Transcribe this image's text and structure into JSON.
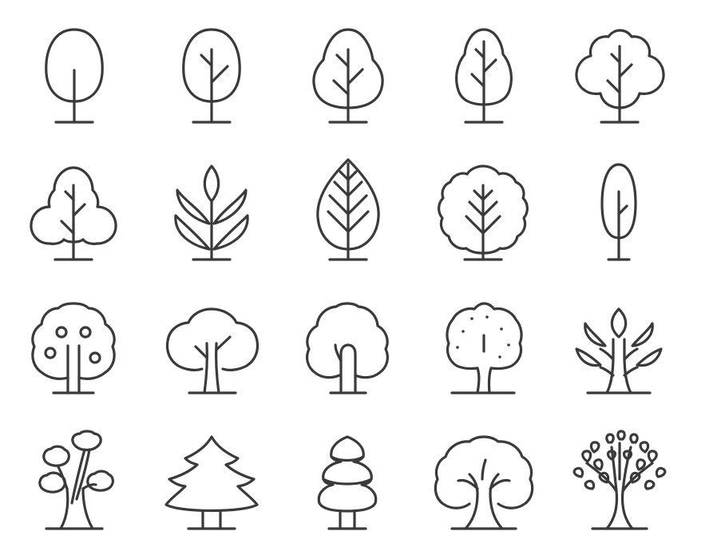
{
  "icon_sheet": {
    "stroke_color": "#3a3a3a",
    "background_color": "#ffffff",
    "rows": [
      [
        "oval-tree-icon",
        "oval-branch-tree-icon",
        "round-branch-tree-icon",
        "tall-branch-tree-icon",
        "cloud-branch-tree-icon"
      ],
      [
        "bushy-tree-icon",
        "leaf-sprig-icon",
        "leaf-tree-icon",
        "round-bush-tree-icon",
        "poplar-tree-icon"
      ],
      [
        "fruit-tree-icon",
        "wide-canopy-tree-icon",
        "cloud-tree-icon",
        "dotted-fruit-tree-icon",
        "leaf-branch-tree-icon"
      ],
      [
        "bonsai-tree-icon",
        "fir-tree-icon",
        "pine-tree-icon",
        "oak-tree-icon",
        "leafy-branch-tree-icon"
      ]
    ]
  }
}
